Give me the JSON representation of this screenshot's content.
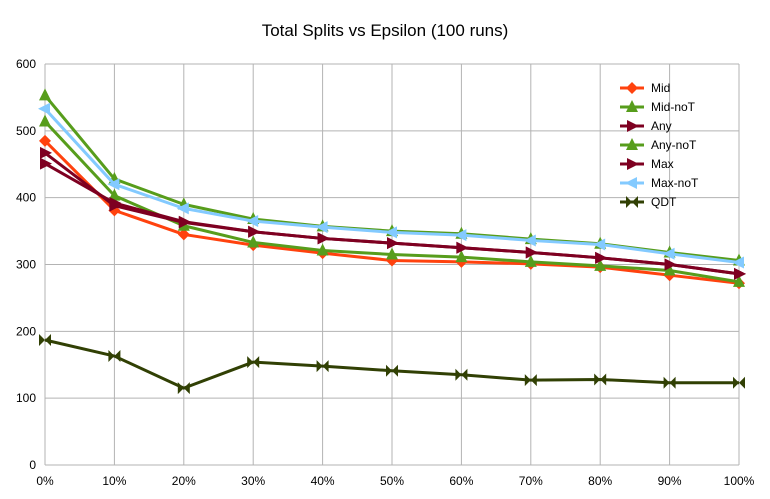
{
  "chart_data": {
    "type": "line",
    "title": "Total Splits vs Epsilon (100 runs)",
    "xlabel": "",
    "ylabel": "",
    "categories": [
      "0%",
      "10%",
      "20%",
      "30%",
      "40%",
      "50%",
      "60%",
      "70%",
      "80%",
      "90%",
      "100%"
    ],
    "ylim": [
      0,
      600
    ],
    "yticks": [
      "0",
      "100",
      "200",
      "300",
      "400",
      "500",
      "600"
    ],
    "grid": "horizontal",
    "legend": "right",
    "series": [
      {
        "name": "Mid",
        "color": "#ff420e",
        "marker": "diamond",
        "values": [
          485,
          381,
          345,
          329,
          317,
          306,
          304,
          301,
          296,
          284,
          272
        ]
      },
      {
        "name": "Mid-noT",
        "color": "#579d1c",
        "marker": "triangle",
        "values": [
          514,
          403,
          358,
          333,
          321,
          315,
          311,
          304,
          298,
          291,
          274
        ]
      },
      {
        "name": "Any",
        "color": "#7e0021",
        "marker": "arrow-right",
        "values": [
          467,
          388,
          363,
          349,
          339,
          332,
          325,
          318,
          310,
          300,
          286
        ]
      },
      {
        "name": "Any-noT",
        "color": "#579d1c",
        "marker": "triangle",
        "values": [
          553,
          428,
          390,
          368,
          357,
          350,
          346,
          338,
          331,
          318,
          306
        ]
      },
      {
        "name": "Max",
        "color": "#7e0021",
        "marker": "arrow-right",
        "values": [
          451,
          392,
          364,
          349,
          339,
          332,
          325,
          318,
          310,
          300,
          286
        ]
      },
      {
        "name": "Max-noT",
        "color": "#83caff",
        "marker": "arrow-left",
        "values": [
          533,
          420,
          384,
          365,
          356,
          348,
          344,
          336,
          330,
          316,
          303
        ]
      },
      {
        "name": "QDT",
        "color": "#314004",
        "marker": "bowtie",
        "values": [
          187,
          163,
          115,
          154,
          148,
          141,
          135,
          127,
          128,
          123,
          123
        ]
      }
    ]
  }
}
